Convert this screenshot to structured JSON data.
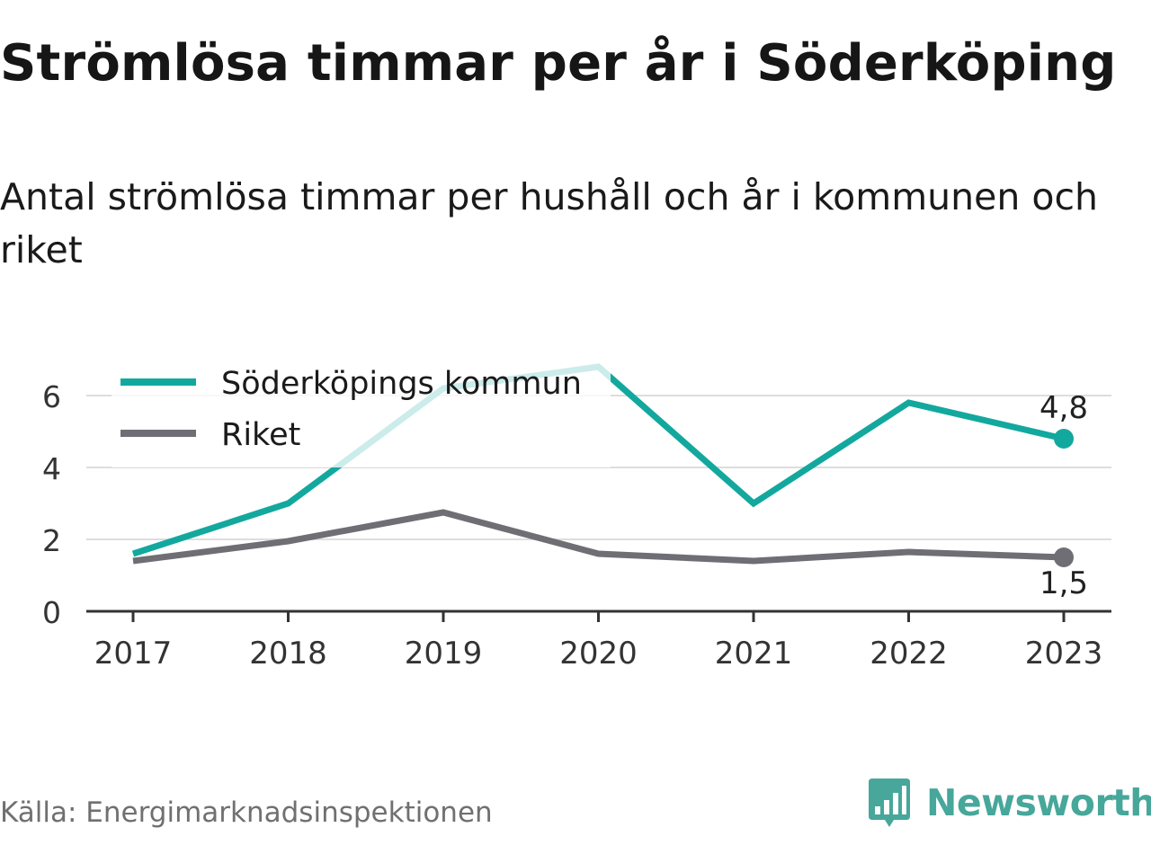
{
  "title": "Strömlösa timmar per år i Söderköping",
  "subtitle": "Antal strömlösa timmar per hushåll och år i kommunen och riket",
  "source": "Källa: Energimarknadsinspektionen",
  "logo": {
    "text": "Newsworthy",
    "icon": "newsworthy-bar-chart-icon"
  },
  "colors": {
    "kommun": "#13a89e",
    "riket": "#6e6e74",
    "grid": "#dddddd",
    "axis": "#333333",
    "brand": "#46a79a"
  },
  "chart_data": {
    "type": "line",
    "x": [
      "2017",
      "2018",
      "2019",
      "2020",
      "2021",
      "2022",
      "2023"
    ],
    "ylim": [
      0,
      7
    ],
    "yticks": [
      0,
      2,
      4,
      6
    ],
    "grid": true,
    "legend_position": "top-left",
    "series": [
      {
        "name": "Söderköpings kommun",
        "values": [
          1.6,
          3.0,
          6.2,
          6.8,
          3.0,
          5.8,
          4.8
        ],
        "end_label": "4,8"
      },
      {
        "name": "Riket",
        "values": [
          1.4,
          1.95,
          2.75,
          1.6,
          1.4,
          1.65,
          1.5
        ],
        "end_label": "1,5"
      }
    ]
  }
}
